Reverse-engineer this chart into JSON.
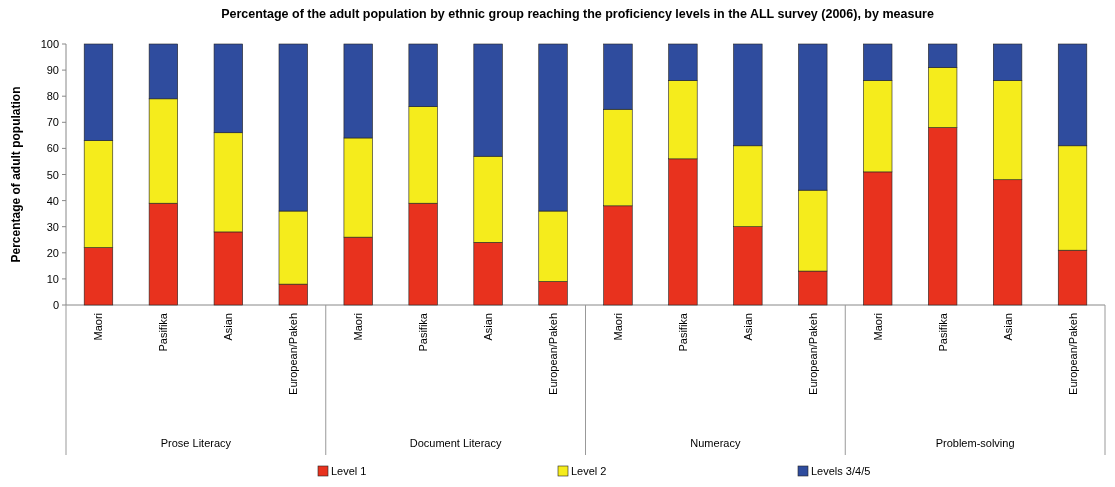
{
  "chart_data": {
    "type": "bar",
    "stacked": true,
    "title": "Percentage of the adult population by ethnic group reaching the proficiency levels in the ALL survey (2006), by measure",
    "ylabel": "Percentage of adult population",
    "categories": [
      "Maori",
      "Pasifika",
      "Asian",
      "European/Pakeh",
      "Maori",
      "Pasifika",
      "Asian",
      "European/Pakeh",
      "Maori",
      "Pasifika",
      "Asian",
      "European/Pakeh",
      "Maori",
      "Pasifika",
      "Asian",
      "European/Pakeh"
    ],
    "series": [
      {
        "name": "Level 1",
        "color": "#e8321e",
        "values": [
          22,
          39,
          28,
          8,
          26,
          39,
          24,
          9,
          38,
          56,
          30,
          13,
          51,
          68,
          48,
          21
        ]
      },
      {
        "name": "Level 2",
        "color": "#f5ec1c",
        "values": [
          41,
          40,
          38,
          28,
          38,
          37,
          33,
          27,
          37,
          30,
          31,
          31,
          35,
          23,
          38,
          40
        ]
      },
      {
        "name": "Levels 3/4/5",
        "color": "#2f4c9e",
        "values": [
          37,
          21,
          34,
          64,
          36,
          24,
          43,
          64,
          25,
          14,
          39,
          56,
          14,
          9,
          14,
          39
        ]
      }
    ],
    "annotations": [
      "Prose Literacy",
      "Document Literacy",
      "Numeracy",
      "Problem-solving"
    ],
    "ylim": [
      0,
      100
    ],
    "yticks": [
      0,
      10,
      20,
      30,
      40,
      50,
      60,
      70,
      80,
      90,
      100
    ],
    "legend": "bottom"
  }
}
